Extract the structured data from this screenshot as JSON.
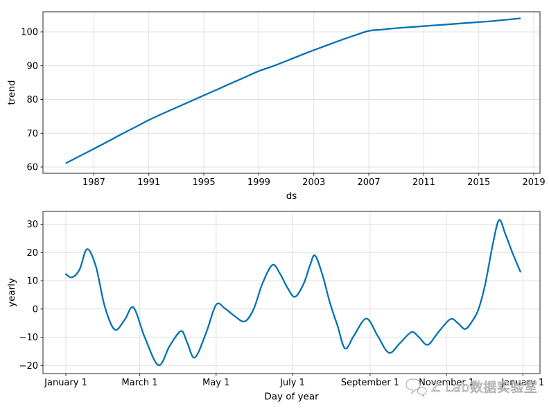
{
  "watermark": {
    "text": "Z Lab数据实验室",
    "icon": "chat-bubbles-logo"
  },
  "colors": {
    "line": "#0072B2",
    "grid": "#e0e0e0",
    "spine": "#262626",
    "text": "#000000",
    "watermark_outline": "#7d7d7d"
  },
  "chart_data": [
    {
      "type": "line",
      "title": "",
      "xlabel": "ds",
      "ylabel": "trend",
      "xlim": [
        1983.3,
        2019.45
      ],
      "ylim": [
        58.15,
        105.95
      ],
      "grid": true,
      "legend": false,
      "xticks": [
        {
          "value": 1987,
          "label": "1987"
        },
        {
          "value": 1991,
          "label": "1991"
        },
        {
          "value": 1995,
          "label": "1995"
        },
        {
          "value": 1999,
          "label": "1999"
        },
        {
          "value": 2003,
          "label": "2003"
        },
        {
          "value": 2007,
          "label": "2007"
        },
        {
          "value": 2011,
          "label": "2011"
        },
        {
          "value": 2015,
          "label": "2015"
        },
        {
          "value": 2019,
          "label": "2019"
        }
      ],
      "yticks": [
        {
          "value": 60,
          "label": "60"
        },
        {
          "value": 70,
          "label": "70"
        },
        {
          "value": 80,
          "label": "80"
        },
        {
          "value": 90,
          "label": "90"
        },
        {
          "value": 100,
          "label": "100"
        }
      ],
      "series": [
        {
          "name": "trend",
          "x": [
            1985,
            1986,
            1987,
            1988,
            1989,
            1990,
            1991,
            1992,
            1993,
            1994,
            1995,
            1996,
            1997,
            1998,
            1999,
            2000,
            2001,
            2002,
            2003,
            2004,
            2005,
            2006,
            2007,
            2008,
            2009,
            2010,
            2011,
            2012,
            2013,
            2014,
            2015,
            2016,
            2017,
            2018
          ],
          "y": [
            61.2,
            63.3,
            65.4,
            67.5,
            69.7,
            71.8,
            73.9,
            75.8,
            77.6,
            79.4,
            81.2,
            83.0,
            84.8,
            86.6,
            88.4,
            89.8,
            91.4,
            93.0,
            94.6,
            96.1,
            97.6,
            99.0,
            100.3,
            100.7,
            101.1,
            101.4,
            101.7,
            102.0,
            102.3,
            102.6,
            102.9,
            103.2,
            103.6,
            104.0
          ]
        }
      ]
    },
    {
      "type": "line",
      "title": "",
      "xlabel": "Day of year",
      "ylabel": "yearly",
      "xlim": [
        -17.27,
        379.65
      ],
      "ylim": [
        -22.87,
        34.54
      ],
      "grid": true,
      "legend": false,
      "xticks": [
        {
          "value": 1,
          "label": "January 1"
        },
        {
          "value": 60,
          "label": "March 1"
        },
        {
          "value": 121,
          "label": "May 1"
        },
        {
          "value": 182,
          "label": "July 1"
        },
        {
          "value": 244,
          "label": "September 1"
        },
        {
          "value": 305,
          "label": "November 1"
        },
        {
          "value": 366,
          "label": "January 1"
        }
      ],
      "yticks": [
        {
          "value": -20,
          "label": "−20"
        },
        {
          "value": -10,
          "label": "−10"
        },
        {
          "value": 0,
          "label": "0"
        },
        {
          "value": 10,
          "label": "10"
        },
        {
          "value": 20,
          "label": "20"
        },
        {
          "value": 30,
          "label": "30"
        }
      ],
      "series": [
        {
          "name": "yearly",
          "x": [
            1,
            6,
            12,
            18,
            25,
            32,
            40,
            48,
            55,
            64,
            75,
            84,
            93,
            98,
            104,
            113,
            121,
            128,
            136,
            144,
            151,
            158,
            166,
            172,
            178,
            184,
            191,
            196,
            200,
            206,
            212,
            218,
            224,
            231,
            241,
            250,
            259,
            268,
            277,
            283,
            290,
            298,
            308,
            314,
            320,
            326,
            331,
            336,
            342,
            347,
            352,
            358,
            364
          ],
          "y": [
            12.3,
            11.2,
            14.0,
            21.2,
            15.0,
            1.0,
            -7.3,
            -3.8,
            0.5,
            -10.0,
            -19.9,
            -13.0,
            -7.8,
            -12.0,
            -17.2,
            -8.5,
            1.5,
            0.2,
            -2.6,
            -4.4,
            0.0,
            9.0,
            15.6,
            12.5,
            7.5,
            4.3,
            9.0,
            15.5,
            18.9,
            12.0,
            2.0,
            -6.0,
            -14.0,
            -9.5,
            -3.4,
            -9.5,
            -15.5,
            -12.0,
            -8.2,
            -10.0,
            -12.7,
            -8.5,
            -3.6,
            -5.0,
            -7.1,
            -4.0,
            0.5,
            9.0,
            23.0,
            31.5,
            26.5,
            19.5,
            13.2
          ]
        }
      ]
    }
  ]
}
